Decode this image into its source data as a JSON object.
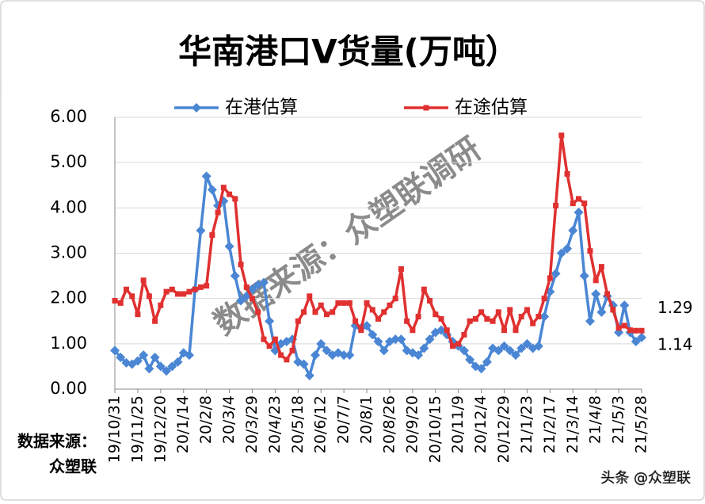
{
  "chart_data": {
    "type": "line",
    "title": "华南港口V货量(万吨）",
    "categories": [
      "19/10/31",
      null,
      null,
      null,
      "19/11/25",
      null,
      null,
      null,
      "19/12/20",
      null,
      null,
      null,
      "20/1/14",
      null,
      null,
      null,
      "20/2/8",
      null,
      null,
      null,
      "20/3/4",
      null,
      null,
      null,
      "20/3/29",
      null,
      null,
      null,
      "20/4/23",
      null,
      null,
      null,
      "20/5/18",
      null,
      null,
      null,
      "20/6/12",
      null,
      null,
      null,
      "20/7/7",
      null,
      null,
      null,
      "20/8/1",
      null,
      null,
      null,
      "20/8/26",
      null,
      null,
      null,
      "20/9/20",
      null,
      null,
      null,
      "20/10/15",
      null,
      null,
      null,
      "20/11/9",
      null,
      null,
      null,
      "20/12/4",
      null,
      null,
      null,
      "20/12/29",
      null,
      null,
      null,
      "21/1/23",
      null,
      null,
      null,
      "21/2/17",
      null,
      null,
      null,
      "21/3/14",
      null,
      null,
      null,
      "21/4/8",
      null,
      null,
      null,
      "21/5/3",
      null,
      null,
      null,
      "21/5/28"
    ],
    "series": [
      {
        "name": "在港估算",
        "color": "#4a86d4",
        "marker": "diamond",
        "values": [
          0.85,
          0.7,
          0.58,
          0.55,
          0.62,
          0.75,
          0.45,
          0.7,
          0.5,
          0.4,
          0.5,
          0.6,
          0.8,
          0.75,
          2.2,
          3.5,
          4.7,
          4.4,
          4.05,
          4.15,
          3.15,
          2.5,
          1.95,
          2.05,
          2.2,
          2.3,
          2.35,
          1.5,
          0.85,
          1.0,
          1.05,
          1.1,
          0.6,
          0.55,
          0.3,
          0.75,
          1.0,
          0.85,
          0.75,
          0.8,
          0.75,
          0.75,
          1.4,
          1.35,
          1.4,
          1.2,
          1.05,
          0.85,
          1.05,
          1.1,
          1.1,
          0.85,
          0.8,
          0.75,
          0.9,
          1.1,
          1.25,
          1.3,
          1.2,
          1.05,
          0.95,
          0.85,
          0.65,
          0.5,
          0.45,
          0.6,
          0.9,
          0.85,
          0.95,
          0.85,
          0.75,
          0.9,
          1.0,
          0.9,
          0.95,
          1.6,
          2.15,
          2.55,
          3.0,
          3.1,
          3.5,
          3.9,
          2.5,
          1.5,
          2.1,
          1.7,
          2.05,
          1.85,
          1.25,
          1.85,
          1.25,
          1.05,
          1.14
        ],
        "value_labels": [
          null,
          null,
          null,
          null,
          null,
          null,
          null,
          null,
          null,
          null,
          null,
          null,
          null,
          null,
          null,
          null,
          null,
          null,
          null,
          null,
          null,
          null,
          null,
          null,
          null,
          null,
          null,
          null,
          null,
          null,
          null,
          null,
          null,
          null,
          null,
          null,
          null,
          null,
          null,
          null,
          null,
          null,
          null,
          null,
          null,
          null,
          null,
          null,
          null,
          null,
          null,
          null,
          null,
          null,
          null,
          null,
          null,
          null,
          null,
          null,
          null,
          null,
          null,
          null,
          null,
          null,
          null,
          null,
          null,
          null,
          null,
          null,
          null,
          null,
          null,
          null,
          null,
          null,
          null,
          null,
          null,
          null,
          null,
          null,
          null,
          null,
          null,
          null,
          null,
          null,
          null,
          null,
          "1.14"
        ]
      },
      {
        "name": "在途估算",
        "color": "#e03030",
        "marker": "square",
        "values": [
          1.95,
          1.9,
          2.2,
          2.05,
          1.65,
          2.4,
          2.05,
          1.5,
          1.85,
          2.15,
          2.2,
          2.1,
          2.1,
          2.15,
          2.2,
          2.25,
          2.28,
          3.4,
          3.9,
          4.45,
          4.3,
          4.2,
          2.75,
          2.25,
          2.0,
          1.7,
          1.1,
          0.95,
          1.1,
          0.75,
          0.65,
          0.85,
          1.5,
          1.7,
          2.05,
          1.7,
          1.85,
          1.65,
          1.7,
          1.9,
          1.9,
          1.9,
          1.5,
          1.3,
          1.9,
          1.75,
          1.55,
          1.7,
          1.85,
          2.0,
          2.65,
          1.5,
          1.3,
          1.6,
          2.2,
          1.95,
          1.65,
          1.55,
          1.3,
          0.95,
          1.0,
          1.2,
          1.5,
          1.55,
          1.7,
          1.55,
          1.5,
          1.7,
          1.3,
          1.75,
          1.3,
          1.6,
          1.75,
          1.45,
          1.6,
          2.0,
          2.45,
          4.05,
          5.6,
          4.75,
          4.1,
          4.2,
          4.1,
          3.05,
          2.4,
          2.7,
          2.1,
          1.75,
          1.35,
          1.4,
          1.3,
          1.29,
          1.29
        ],
        "value_labels": [
          null,
          null,
          null,
          null,
          null,
          null,
          null,
          null,
          null,
          null,
          null,
          null,
          null,
          null,
          null,
          null,
          null,
          null,
          null,
          null,
          null,
          null,
          null,
          null,
          null,
          null,
          null,
          null,
          null,
          null,
          null,
          null,
          null,
          null,
          null,
          null,
          null,
          null,
          null,
          null,
          null,
          null,
          null,
          null,
          null,
          null,
          null,
          null,
          null,
          null,
          null,
          null,
          null,
          null,
          null,
          null,
          null,
          null,
          null,
          null,
          null,
          null,
          null,
          null,
          null,
          null,
          null,
          null,
          null,
          null,
          null,
          null,
          null,
          null,
          null,
          null,
          null,
          null,
          null,
          null,
          null,
          null,
          null,
          null,
          null,
          null,
          null,
          null,
          null,
          null,
          null,
          null,
          "1.29"
        ]
      }
    ],
    "ylim": [
      0,
      6
    ],
    "yticks": [
      {
        "value": 0,
        "label": "0.00"
      },
      {
        "value": 1,
        "label": "1.00"
      },
      {
        "value": 2,
        "label": "2.00"
      },
      {
        "value": 3,
        "label": "3.00"
      },
      {
        "value": 4,
        "label": "4.00"
      },
      {
        "value": 5,
        "label": "5.00"
      },
      {
        "value": 6,
        "label": "6.00"
      }
    ],
    "grid": true,
    "legend": "top",
    "watermark": "数据来源：众塑联调研",
    "source": [
      "数据来源：",
      "众塑联"
    ],
    "credit": "头条 @众塑联"
  }
}
